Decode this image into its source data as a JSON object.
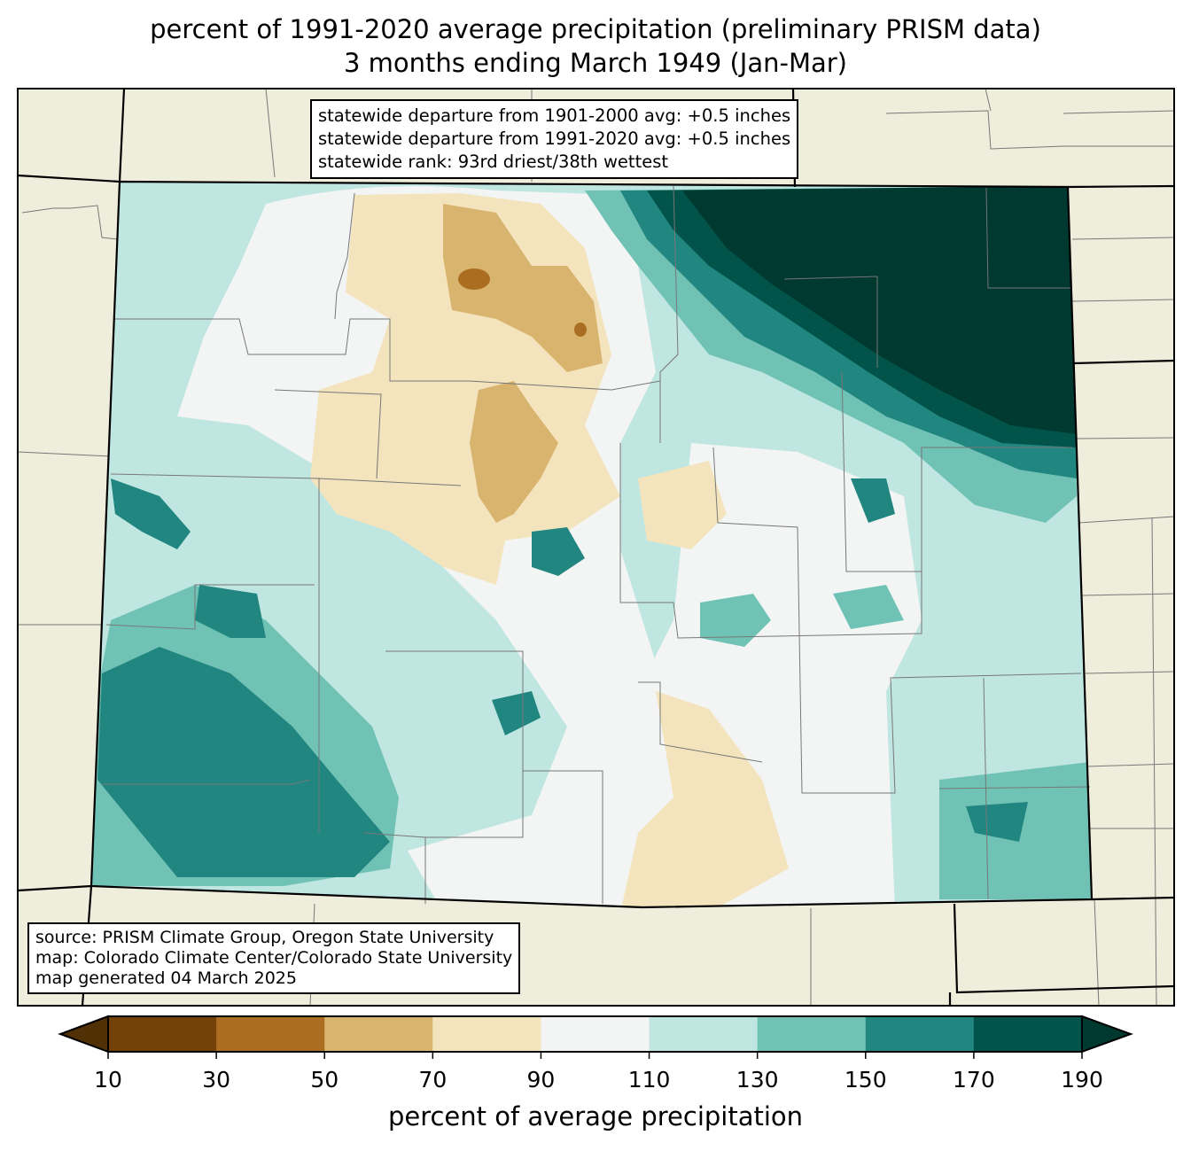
{
  "title": {
    "line1": "percent of 1991-2020 average precipitation (preliminary PRISM data)",
    "line2": "3 months ending March 1949 (Jan-Mar)"
  },
  "stats": {
    "line1": "statewide departure from 1901-2000 avg: +0.5 inches",
    "line2": "statewide departure from 1991-2020 avg: +0.5 inches",
    "line3": "statewide rank: 93rd driest/38th wettest"
  },
  "credits": {
    "line1": "source: PRISM Climate Group, Oregon State University",
    "line2": "map: Colorado Climate Center/Colorado State University",
    "line3": "map generated 04 March 2025"
  },
  "colorbar": {
    "label": "percent of average precipitation",
    "ticks": [
      "10",
      "30",
      "50",
      "70",
      "90",
      "110",
      "130",
      "150",
      "170",
      "190"
    ],
    "colors": [
      "#744109",
      "#ab6d21",
      "#d9b46e",
      "#f3e4bd",
      "#f3f5f4",
      "#bfe6e1",
      "#70c2b5",
      "#21867f",
      "#02544a"
    ],
    "under_color": "#513006",
    "over_color": "#00392f"
  },
  "colors": {
    "land": "#efeedc"
  }
}
